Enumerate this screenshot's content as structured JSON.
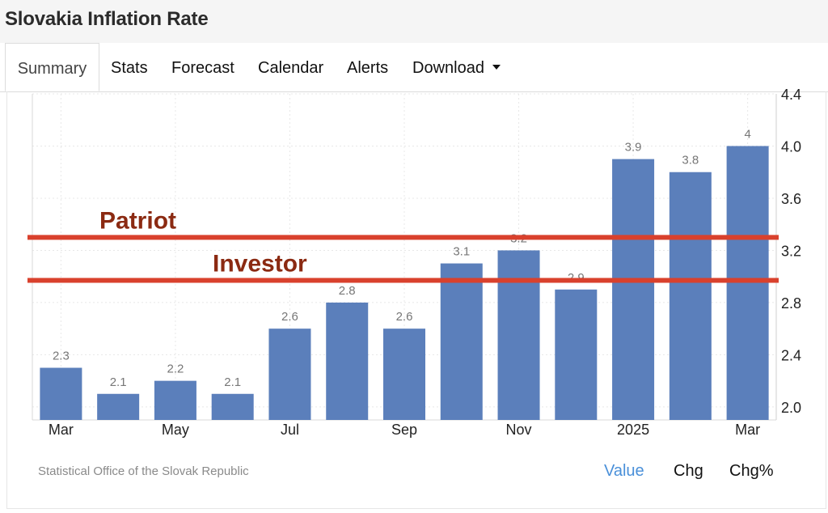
{
  "page": {
    "title": "Slovakia Inflation Rate"
  },
  "tabs": [
    {
      "label": "Summary",
      "active": true
    },
    {
      "label": "Stats"
    },
    {
      "label": "Forecast"
    },
    {
      "label": "Calendar"
    },
    {
      "label": "Alerts"
    },
    {
      "label": "Download",
      "has_dropdown": true
    }
  ],
  "footer": {
    "source": "Statistical Office of the Slovak Republic",
    "view_buttons": [
      {
        "label": "Value",
        "selected": true
      },
      {
        "label": "Chg"
      },
      {
        "label": "Chg%"
      }
    ]
  },
  "colors": {
    "bar": "#5b7fbb",
    "annotation": "#8b2a12",
    "annotation_line": "#d9412d",
    "selected": "#4a90d9"
  },
  "chart_data": {
    "type": "bar",
    "categories": [
      "Mar",
      "",
      "May",
      "",
      "Jul",
      "",
      "Sep",
      "",
      "Nov",
      "",
      "2025",
      "",
      "Mar"
    ],
    "values": [
      2.3,
      2.1,
      2.2,
      2.1,
      2.6,
      2.8,
      2.6,
      3.1,
      3.2,
      2.9,
      3.9,
      3.8,
      4
    ],
    "data_labels": [
      "2.3",
      "2.1",
      "2.2",
      "2.1",
      "2.6",
      "2.8",
      "2.6",
      "3.1",
      "3.2",
      "2.9",
      "3.9",
      "3.8",
      "4"
    ],
    "ylim": [
      1.9,
      4.4
    ],
    "yticks": [
      2.0,
      2.4,
      2.8,
      3.2,
      3.6,
      4.0,
      4.4
    ],
    "ytick_labels": [
      "2.0",
      "2.4",
      "2.8",
      "3.2",
      "3.6",
      "4.0",
      "4.4"
    ],
    "y_axis_side": "right",
    "grid": true,
    "reference_lines": [
      {
        "label": "Patriot",
        "value": 3.3
      },
      {
        "label": "Investor",
        "value": 2.97
      }
    ]
  }
}
